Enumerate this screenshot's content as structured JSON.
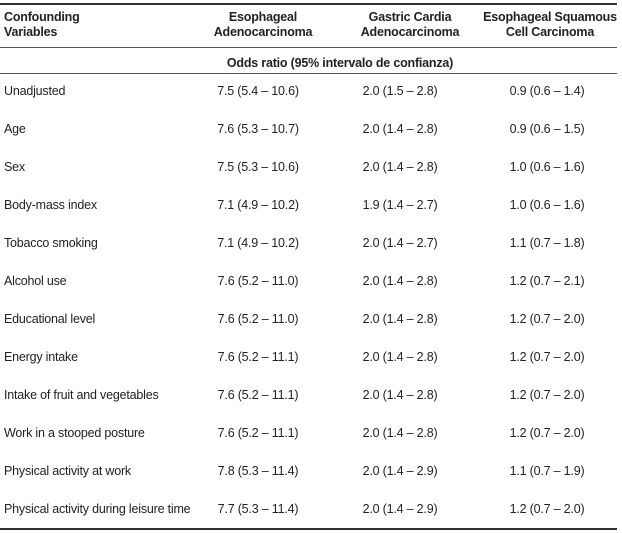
{
  "table": {
    "headers": {
      "variables": [
        "Confounding",
        "Variables"
      ],
      "col1": [
        "Esophageal",
        "Adenocarcinoma"
      ],
      "col2": [
        "Gastric Cardia",
        "Adenocarcinoma"
      ],
      "col3": [
        "Esophageal Squamous",
        "Cell Carcinoma"
      ]
    },
    "subheader": "Odds ratio (95% intervalo de confianza)",
    "rows": [
      {
        "label": "Unadjusted",
        "c1": "7.5 (5.4 – 10.6)",
        "c2": "2.0 (1.5 – 2.8)",
        "c3": "0.9 (0.6 – 1.4)"
      },
      {
        "label": "Age",
        "c1": "7.6 (5.3 – 10.7)",
        "c2": "2.0 (1.4 – 2.8)",
        "c3": "0.9 (0.6 – 1.5)"
      },
      {
        "label": "Sex",
        "c1": "7.5 (5.3 – 10.6)",
        "c2": "2.0 (1.4 – 2.8)",
        "c3": "1.0 (0.6 – 1.6)"
      },
      {
        "label": "Body-mass index",
        "c1": "7.1 (4.9 – 10.2)",
        "c2": "1.9 (1.4 – 2.7)",
        "c3": "1.0 (0.6 – 1.6)"
      },
      {
        "label": "Tobacco smoking",
        "c1": "7.1 (4.9 – 10.2)",
        "c2": "2.0 (1.4 – 2.7)",
        "c3": "1.1 (0.7 – 1.8)"
      },
      {
        "label": "Alcohol use",
        "c1": "7.6 (5.2 – 11.0)",
        "c2": "2.0 (1.4 – 2.8)",
        "c3": "1.2 (0.7 – 2.1)"
      },
      {
        "label": "Educational level",
        "c1": "7.6 (5.2 – 11.0)",
        "c2": "2.0 (1.4 – 2.8)",
        "c3": "1.2 (0.7 – 2.0)"
      },
      {
        "label": "Energy intake",
        "c1": "7.6 (5.2 – 11.1)",
        "c2": "2.0 (1.4 – 2.8)",
        "c3": "1.2 (0.7 – 2.0)"
      },
      {
        "label": "Intake of fruit and vegetables",
        "c1": "7.6 (5.2 – 11.1)",
        "c2": "2.0 (1.4 – 2.8)",
        "c3": "1.2 (0.7 – 2.0)"
      },
      {
        "label": "Work in a stooped posture",
        "c1": "7.6 (5.2 – 11.1)",
        "c2": "2.0 (1.4 – 2.8)",
        "c3": "1.2 (0.7 – 2.0)"
      },
      {
        "label": "Physical activity at work",
        "c1": "7.8 (5.3 – 11.4)",
        "c2": "2.0 (1.4 – 2.9)",
        "c3": "1.1 (0.7 – 1.9)"
      },
      {
        "label": "Physical activity during leisure time",
        "c1": "7.7 (5.3 – 11.4)",
        "c2": "2.0 (1.4 – 2.9)",
        "c3": "1.2 (0.7 – 2.0)"
      }
    ]
  }
}
